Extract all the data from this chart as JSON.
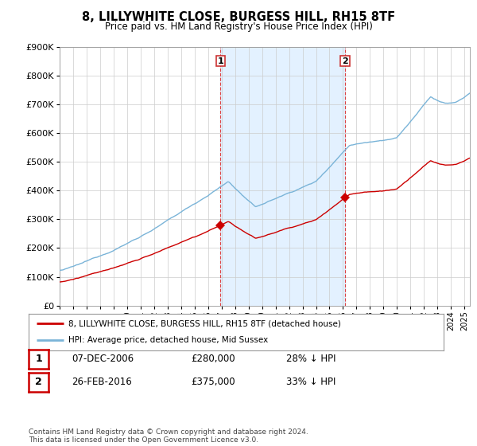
{
  "title": "8, LILLYWHITE CLOSE, BURGESS HILL, RH15 8TF",
  "subtitle": "Price paid vs. HM Land Registry's House Price Index (HPI)",
  "ylim": [
    0,
    900000
  ],
  "yticks": [
    0,
    100000,
    200000,
    300000,
    400000,
    500000,
    600000,
    700000,
    800000,
    900000
  ],
  "xlim_start": 1995.0,
  "xlim_end": 2025.4,
  "hpi_color": "#7ab4d8",
  "price_color": "#cc0000",
  "fill_color": "#ddeeff",
  "purchase1_date": 2006.92,
  "purchase1_price": 280000,
  "purchase1_label": "1",
  "purchase2_date": 2016.15,
  "purchase2_price": 375000,
  "purchase2_label": "2",
  "legend_house": "8, LILLYWHITE CLOSE, BURGESS HILL, RH15 8TF (detached house)",
  "legend_hpi": "HPI: Average price, detached house, Mid Sussex",
  "table_row1": [
    "1",
    "07-DEC-2006",
    "£280,000",
    "28% ↓ HPI"
  ],
  "table_row2": [
    "2",
    "26-FEB-2016",
    "£375,000",
    "33% ↓ HPI"
  ],
  "footer": "Contains HM Land Registry data © Crown copyright and database right 2024.\nThis data is licensed under the Open Government Licence v3.0.",
  "background_color": "#ffffff",
  "grid_color": "#cccccc"
}
